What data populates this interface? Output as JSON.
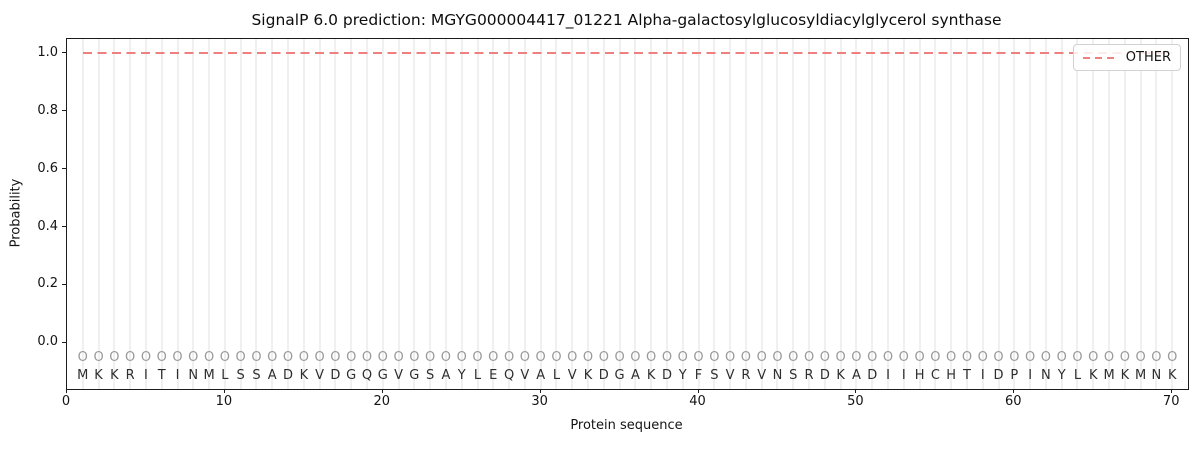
{
  "title": "SignalP 6.0 prediction: MGYG000004417_01221 Alpha-galactosylglucosyldiacylglycerol synthase",
  "chart_data": {
    "type": "line",
    "title": "SignalP 6.0 prediction: MGYG000004417_01221 Alpha-galactosylglucosyldiacylglycerol synthase",
    "xlabel": "Protein sequence",
    "ylabel": "Probability",
    "xlim": [
      0,
      71
    ],
    "ylim": [
      -0.16,
      1.05
    ],
    "xticks": [
      {
        "value": 0,
        "label": "0"
      },
      {
        "value": 10,
        "label": "10"
      },
      {
        "value": 20,
        "label": "20"
      },
      {
        "value": 30,
        "label": "30"
      },
      {
        "value": 40,
        "label": "40"
      },
      {
        "value": 50,
        "label": "50"
      },
      {
        "value": 60,
        "label": "60"
      },
      {
        "value": 70,
        "label": "70"
      }
    ],
    "yticks": [
      {
        "value": 0.0,
        "label": "0.0"
      },
      {
        "value": 0.2,
        "label": "0.2"
      },
      {
        "value": 0.4,
        "label": "0.4"
      },
      {
        "value": 0.6,
        "label": "0.6"
      },
      {
        "value": 0.8,
        "label": "0.8"
      },
      {
        "value": 1.0,
        "label": "1.0"
      }
    ],
    "grid": "vertical line at every residue position, light gray",
    "legend": {
      "position": "upper right",
      "entries": [
        {
          "label": "OTHER",
          "color": "#f08080",
          "style": "dashed"
        }
      ]
    },
    "series": [
      {
        "name": "OTHER",
        "style": "dashed",
        "color": "#f08080",
        "positions": [
          1,
          2,
          3,
          4,
          5,
          6,
          7,
          8,
          9,
          10,
          11,
          12,
          13,
          14,
          15,
          16,
          17,
          18,
          19,
          20,
          21,
          22,
          23,
          24,
          25,
          26,
          27,
          28,
          29,
          30,
          31,
          32,
          33,
          34,
          35,
          36,
          37,
          38,
          39,
          40,
          41,
          42,
          43,
          44,
          45,
          46,
          47,
          48,
          49,
          50,
          51,
          52,
          53,
          54,
          55,
          56,
          57,
          58,
          59,
          60,
          61,
          62,
          63,
          64,
          65,
          66,
          67,
          68,
          69,
          70
        ],
        "values": [
          1.0,
          1.0,
          1.0,
          1.0,
          1.0,
          1.0,
          1.0,
          1.0,
          1.0,
          1.0,
          1.0,
          1.0,
          1.0,
          1.0,
          1.0,
          1.0,
          1.0,
          1.0,
          1.0,
          1.0,
          1.0,
          1.0,
          1.0,
          1.0,
          1.0,
          1.0,
          1.0,
          1.0,
          1.0,
          1.0,
          1.0,
          1.0,
          1.0,
          1.0,
          1.0,
          1.0,
          1.0,
          1.0,
          1.0,
          1.0,
          1.0,
          1.0,
          1.0,
          1.0,
          1.0,
          1.0,
          1.0,
          1.0,
          1.0,
          1.0,
          1.0,
          1.0,
          1.0,
          1.0,
          1.0,
          1.0,
          1.0,
          1.0,
          1.0,
          1.0,
          1.0,
          1.0,
          1.0,
          1.0,
          1.0,
          1.0,
          1.0,
          1.0,
          1.0,
          1.0
        ]
      }
    ],
    "sequence": "MKKRITINMLSSADKVDGQGVGSAYLEQVALVKDGAKDYFSVRVNSRDKADIIHCHTIDPINYLKMKMNK",
    "position_marks": "OOOOOOOOOOOOOOOOOOOOOOOOOOOOOOOOOOOOOOOOOOOOOOOOOOOOOOOOOOOOOOOOOOOOOO",
    "marks_row_y": -0.053,
    "sequence_row_y": -0.115,
    "colors": {
      "other": "#f08080",
      "grid": "#f0f0f0",
      "sequence_text": "#2e2e2e",
      "marks_text": "#9a9a9a"
    }
  }
}
